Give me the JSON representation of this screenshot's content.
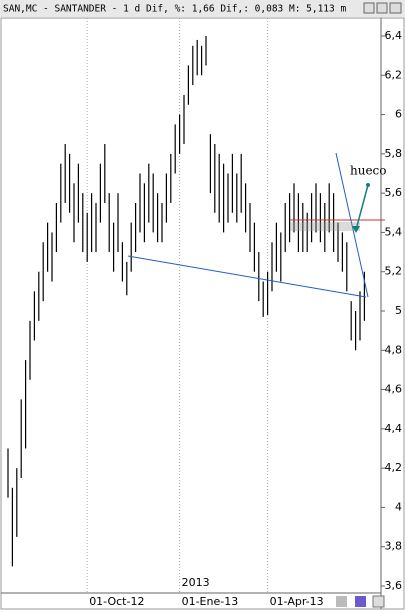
{
  "chart_data": {
    "type": "ohlc",
    "title": "SAN,MC - SANTANDER -  1 d Dif, %: 1,66 Dif,: 0,083 M: 5,113 m",
    "annotation": "hueco",
    "year_label": "2013",
    "color": "#000000",
    "categories": [
      null,
      null,
      null,
      null,
      null,
      null,
      null,
      null,
      null,
      null,
      null,
      null,
      null,
      null,
      null,
      null,
      null,
      null,
      "01-Oct-12",
      null,
      null,
      null,
      null,
      null,
      null,
      null,
      null,
      null,
      null,
      null,
      null,
      null,
      null,
      null,
      null,
      null,
      null,
      null,
      null,
      "01-Ene-13",
      null,
      null,
      null,
      null,
      null,
      null,
      null,
      null,
      null,
      null,
      null,
      null,
      null,
      null,
      null,
      null,
      null,
      null,
      null,
      "01-Apr-13",
      null,
      null,
      null,
      null,
      null,
      null,
      null,
      null,
      null,
      null,
      null,
      null,
      null,
      null,
      null,
      null,
      null,
      null,
      null,
      null,
      null,
      null
    ],
    "high": [
      4.3,
      4.1,
      4.2,
      4.55,
      4.75,
      4.95,
      5.1,
      5.2,
      5.35,
      5.45,
      5.4,
      5.55,
      5.75,
      5.85,
      5.8,
      5.65,
      5.75,
      5.6,
      5.5,
      5.6,
      5.55,
      5.75,
      5.85,
      5.6,
      5.45,
      5.6,
      5.35,
      5.25,
      5.45,
      5.55,
      5.7,
      5.65,
      5.75,
      5.7,
      5.6,
      5.55,
      5.7,
      5.8,
      5.95,
      6.0,
      6.1,
      6.25,
      6.35,
      6.38,
      6.35,
      6.4,
      5.9,
      5.85,
      5.8,
      5.75,
      5.7,
      5.8,
      5.7,
      5.8,
      5.65,
      5.55,
      5.45,
      5.3,
      5.15,
      5.2,
      5.35,
      5.45,
      5.4,
      5.55,
      5.6,
      5.65,
      5.6,
      5.55,
      5.5,
      5.6,
      5.65,
      5.6,
      5.55,
      5.65,
      5.6,
      5.45,
      5.4,
      5.35,
      5.05,
      5.0,
      5.1,
      5.2
    ],
    "low": [
      4.05,
      3.7,
      3.85,
      4.15,
      4.3,
      4.65,
      4.85,
      4.95,
      5.05,
      5.2,
      5.15,
      5.3,
      5.45,
      5.55,
      5.5,
      5.35,
      5.45,
      5.3,
      5.25,
      5.3,
      5.3,
      5.45,
      5.55,
      5.3,
      5.2,
      5.3,
      5.15,
      5.08,
      5.2,
      5.3,
      5.4,
      5.35,
      5.45,
      5.4,
      5.35,
      5.35,
      5.45,
      5.55,
      5.7,
      5.8,
      5.85,
      6.05,
      6.15,
      6.2,
      6.2,
      6.25,
      5.6,
      5.5,
      5.45,
      5.4,
      5.45,
      5.5,
      5.45,
      5.5,
      5.4,
      5.3,
      5.2,
      5.05,
      4.97,
      4.98,
      5.1,
      5.2,
      5.15,
      5.3,
      5.35,
      5.4,
      5.3,
      5.3,
      5.3,
      5.35,
      5.4,
      5.35,
      5.3,
      5.4,
      5.3,
      5.25,
      5.2,
      5.1,
      4.85,
      4.8,
      4.85,
      4.95
    ],
    "ylim": [
      3.6,
      6.4
    ],
    "yticks": [
      {
        "value": 3.6,
        "label": "3,6"
      },
      {
        "value": 3.8,
        "label": "3,8"
      },
      4,
      {
        "value": 4.2,
        "label": "4,2"
      },
      {
        "value": 4.4,
        "label": "4,4"
      },
      {
        "value": 4.6,
        "label": "4,6"
      },
      {
        "value": 4.8,
        "label": "4,8"
      },
      5,
      {
        "value": 5.2,
        "label": "5,2"
      },
      {
        "value": 5.4,
        "label": "5,4"
      },
      {
        "value": 5.6,
        "label": "5,6"
      },
      {
        "value": 5.8,
        "label": "5,8"
      },
      6,
      {
        "value": 6.2,
        "label": "6,2"
      },
      {
        "value": 6.4,
        "label": "6,4"
      }
    ]
  }
}
